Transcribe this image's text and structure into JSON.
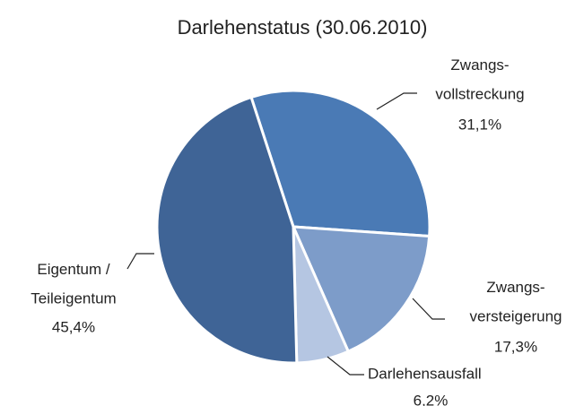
{
  "chart_data": {
    "type": "pie",
    "title": "Darlehenstatus (30.06.2010)",
    "categories": [
      "Zwangs-\nvollstreckung",
      "Zwangs-\nversteigerung",
      "Darlehensausfall",
      "Eigentum /\nTeileigentum"
    ],
    "values": [
      31.1,
      17.3,
      6.2,
      45.4
    ],
    "value_labels": [
      "31,1%",
      "17,3%",
      "6,2%",
      "45,4%"
    ],
    "colors": [
      "#4a7ab5",
      "#7d9cc9",
      "#b5c6e2",
      "#3f6496"
    ]
  }
}
